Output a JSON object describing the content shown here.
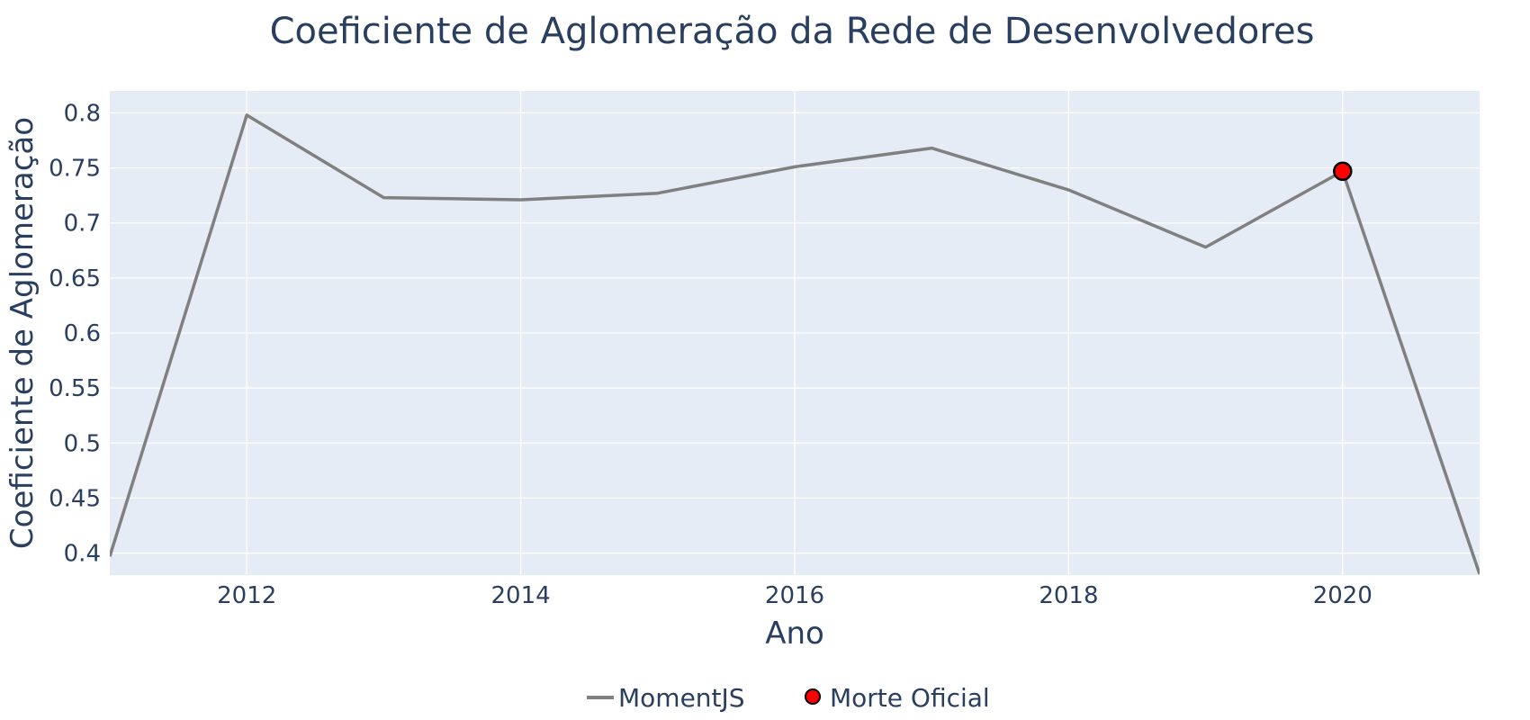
{
  "chart_data": {
    "type": "line",
    "title": "Coeficiente de Aglomeração da Rede de Desenvolvedores",
    "xlabel": "Ano",
    "ylabel": "Coeficiente de Aglomeração",
    "xlim": [
      2011,
      2021
    ],
    "ylim": [
      0.38,
      0.82
    ],
    "x_ticks": [
      2012,
      2014,
      2016,
      2018,
      2020
    ],
    "x_tick_labels": [
      "2012",
      "2014",
      "2016",
      "2018",
      "2020"
    ],
    "y_ticks": [
      0.4,
      0.45,
      0.5,
      0.55,
      0.6,
      0.65,
      0.7,
      0.75,
      0.8
    ],
    "y_tick_labels": [
      "0.4",
      "0.45",
      "0.5",
      "0.55",
      "0.6",
      "0.65",
      "0.7",
      "0.75",
      "0.8"
    ],
    "grid": true,
    "legend_position": "bottom-center",
    "plot_background": "#e5ecf6",
    "series": [
      {
        "name": "MomentJS",
        "type": "line",
        "color": "#808080",
        "x": [
          2011,
          2012,
          2013,
          2014,
          2015,
          2016,
          2017,
          2018,
          2019,
          2020,
          2021
        ],
        "y": [
          0.397,
          0.798,
          0.723,
          0.721,
          0.727,
          0.751,
          0.768,
          0.73,
          0.678,
          0.747,
          0.381
        ]
      },
      {
        "name": "Morte Oficial",
        "type": "scatter",
        "color": "#ff0000",
        "edge_color": "#000000",
        "x": [
          2020
        ],
        "y": [
          0.747
        ]
      }
    ]
  }
}
